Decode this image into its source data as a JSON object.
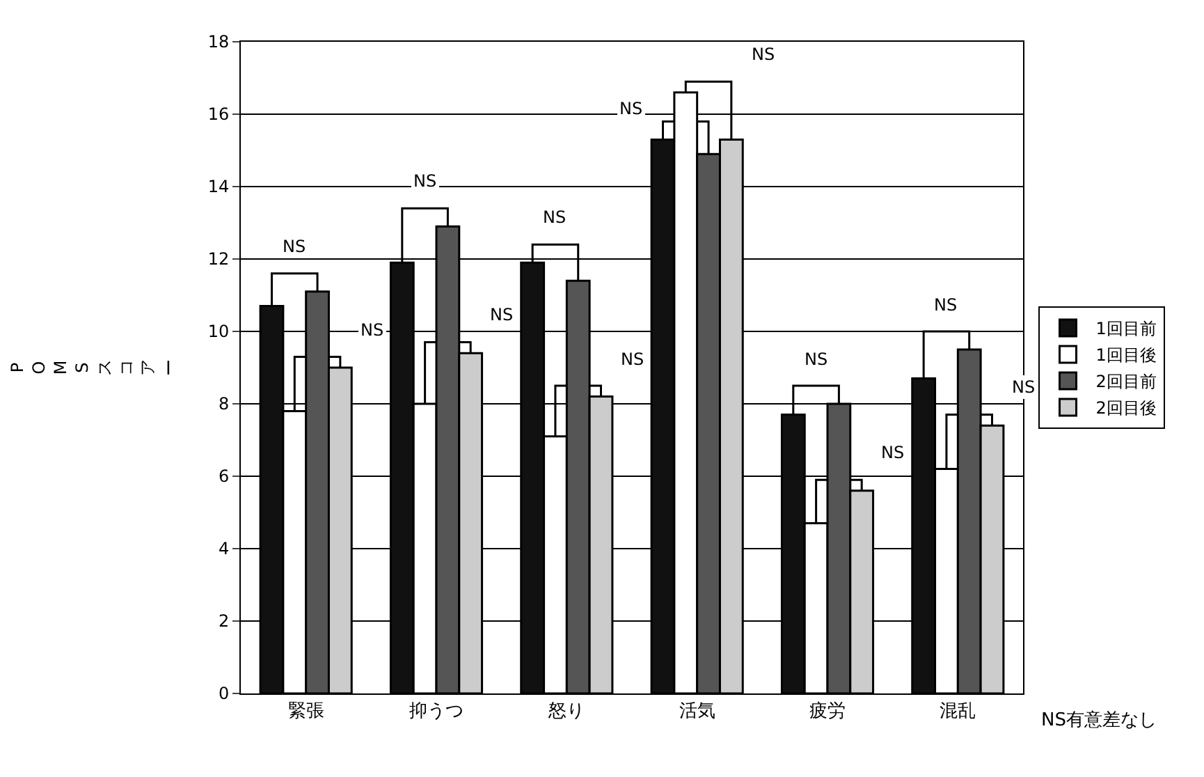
{
  "chart_data": {
    "type": "bar",
    "ylabel": "POMSスコアー",
    "categories": [
      "緊張",
      "抑うつ",
      "怒り",
      "活気",
      "疲労",
      "混乱"
    ],
    "series": [
      {
        "name": "1回目前",
        "color": "#111111",
        "values": [
          10.7,
          11.9,
          11.9,
          15.3,
          7.7,
          8.7
        ]
      },
      {
        "name": "1回目後",
        "color": "#ffffff",
        "values": [
          7.8,
          8.0,
          7.1,
          16.6,
          4.7,
          6.2
        ]
      },
      {
        "name": "2回目前",
        "color": "#555555",
        "values": [
          11.1,
          12.9,
          11.4,
          14.9,
          8.0,
          9.5
        ]
      },
      {
        "name": "2回目後",
        "color": "#cccccc",
        "values": [
          9.0,
          9.4,
          8.2,
          15.3,
          5.6,
          7.4
        ]
      }
    ],
    "ylim": [
      0,
      18
    ],
    "yticks": [
      0,
      2,
      4,
      6,
      8,
      10,
      12,
      14,
      16,
      18
    ],
    "grid": "y",
    "legend": "right",
    "annotations": [
      "NS",
      "NS",
      "NS",
      "NS",
      "NS",
      "NS",
      "NS",
      "NS",
      "NS",
      "NS",
      "NS",
      "NS",
      "NS有意差なし"
    ]
  }
}
